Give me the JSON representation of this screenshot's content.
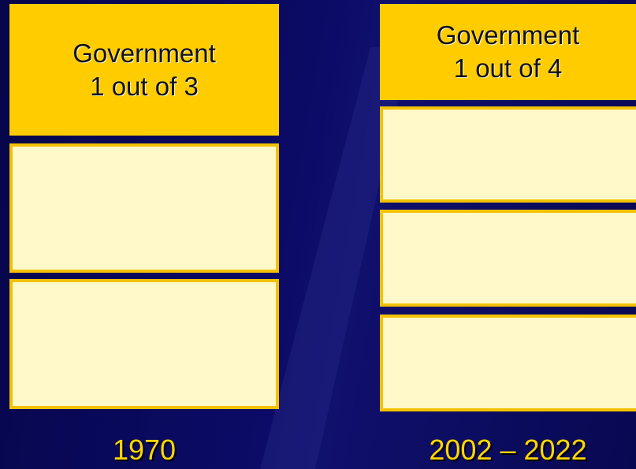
{
  "columns": [
    {
      "header": [
        "Government",
        "1 out of 3"
      ],
      "label": "1970"
    },
    {
      "header": [
        "Government",
        "1 out of 4"
      ],
      "label": "2002 – 2022"
    }
  ]
}
